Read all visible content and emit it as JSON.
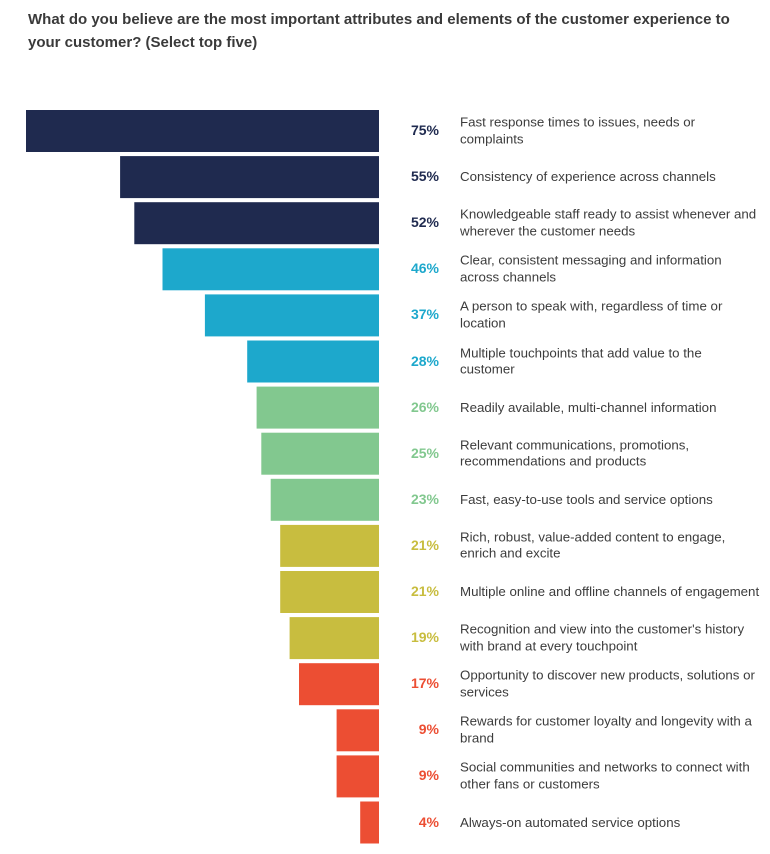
{
  "chart_data": {
    "type": "bar",
    "orientation": "horizontal-left",
    "title": "What do you believe are the most important attributes and elements of the customer experience to your customer? (Select top five)",
    "unit": "%",
    "xlim": [
      0,
      75
    ],
    "colors": {
      "navy": "#1f2a4f",
      "blue": "#1da8cc",
      "green": "#82c88f",
      "olive": "#c8bd3f",
      "red": "#ec4e33"
    },
    "items": [
      {
        "label": "Fast response times to issues, needs or complaints",
        "value": 75,
        "display": "75%",
        "color": "navy"
      },
      {
        "label": "Consistency of experience across channels",
        "value": 55,
        "display": "55%",
        "color": "navy"
      },
      {
        "label": "Knowledgeable staff ready to assist whenever and wherever the customer needs",
        "value": 52,
        "display": "52%",
        "color": "navy"
      },
      {
        "label": "Clear, consistent messaging and information across channels",
        "value": 46,
        "display": "46%",
        "color": "blue"
      },
      {
        "label": "A person to speak with, regardless of time or location",
        "value": 37,
        "display": "37%",
        "color": "blue"
      },
      {
        "label": "Multiple touchpoints that add value to the customer",
        "value": 28,
        "display": "28%",
        "color": "blue"
      },
      {
        "label": "Readily available, multi-channel information",
        "value": 26,
        "display": "26%",
        "color": "green"
      },
      {
        "label": "Relevant communications, promotions, recommendations and products",
        "value": 25,
        "display": "25%",
        "color": "green"
      },
      {
        "label": "Fast, easy-to-use tools and service options",
        "value": 23,
        "display": "23%",
        "color": "green"
      },
      {
        "label": "Rich, robust, value-added content to engage, enrich and excite",
        "value": 21,
        "display": "21%",
        "color": "olive"
      },
      {
        "label": "Multiple online and offline channels of engagement",
        "value": 21,
        "display": "21%",
        "color": "olive"
      },
      {
        "label": "Recognition and view into the customer's history with brand at every touchpoint",
        "value": 19,
        "display": "19%",
        "color": "olive"
      },
      {
        "label": "Opportunity to discover new products, solutions or services",
        "value": 17,
        "display": "17%",
        "color": "red"
      },
      {
        "label": "Rewards for customer loyalty and longevity with a brand",
        "value": 9,
        "display": "9%",
        "color": "red"
      },
      {
        "label": "Social communities and networks to connect with other fans or customers",
        "value": 9,
        "display": "9%",
        "color": "red"
      },
      {
        "label": "Always-on automated service options",
        "value": 4,
        "display": "4%",
        "color": "red"
      }
    ]
  }
}
